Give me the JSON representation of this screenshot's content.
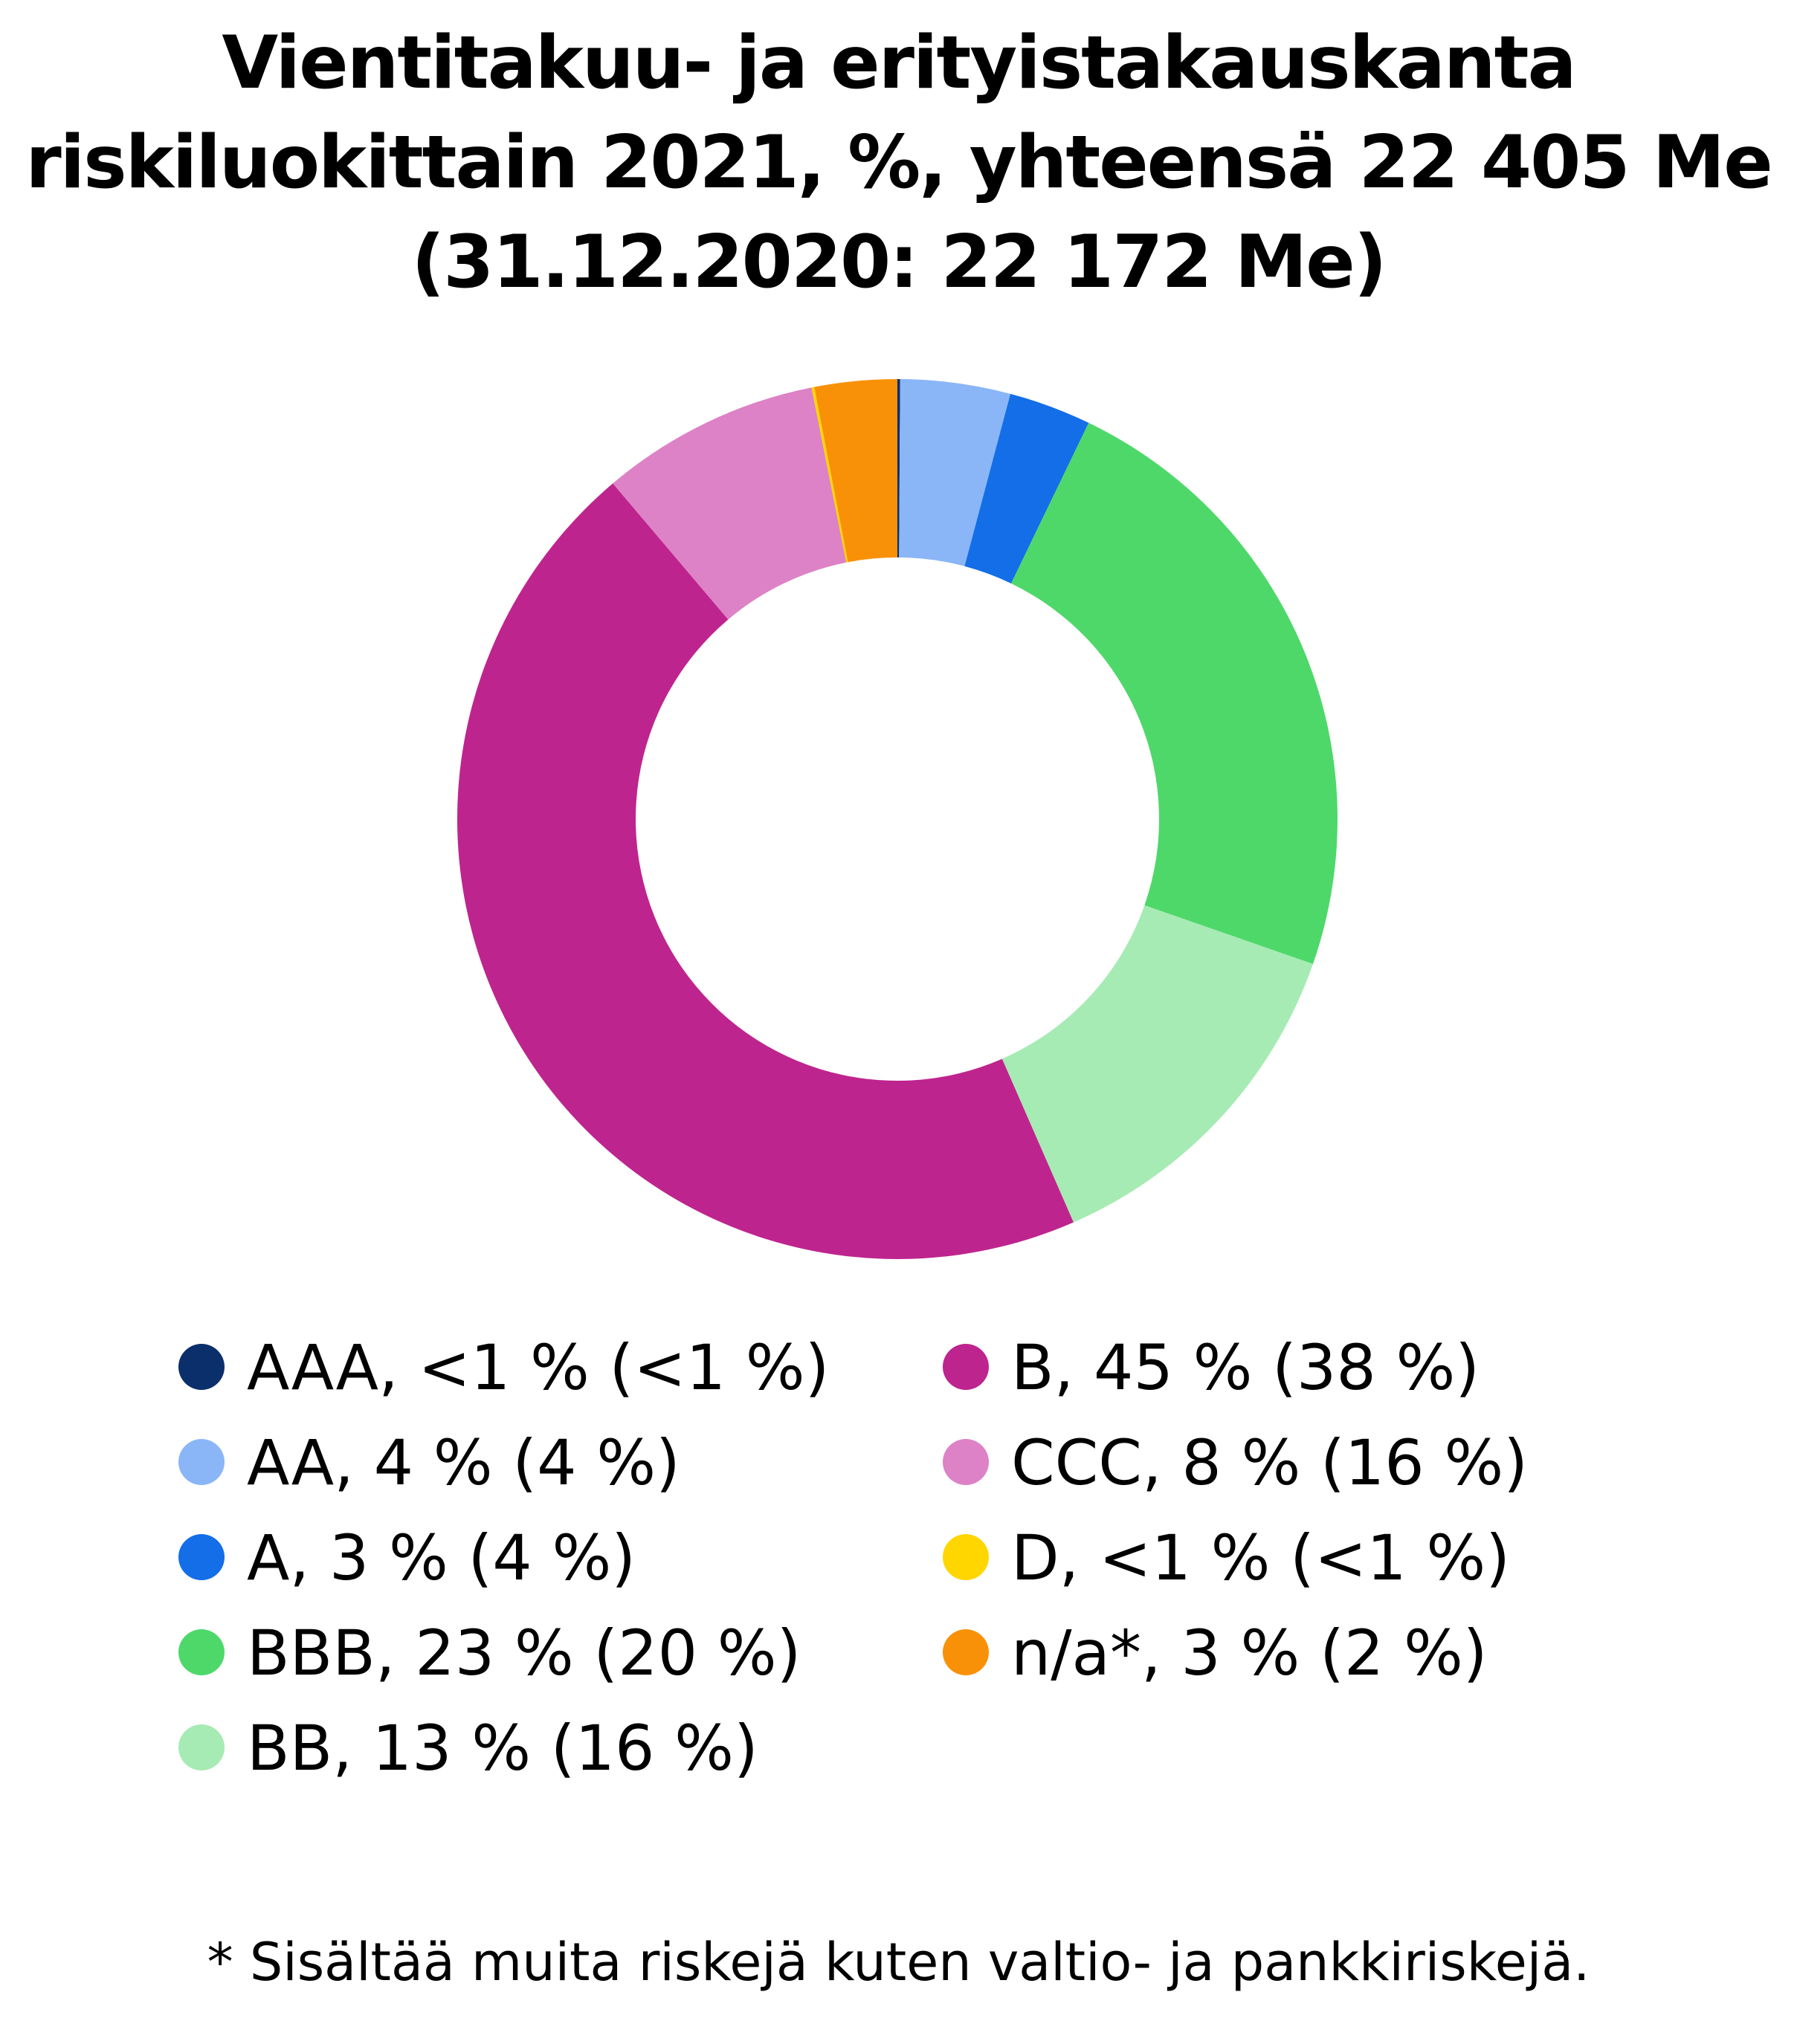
{
  "chart_data": {
    "type": "pie",
    "donut": true,
    "title_lines": [
      "Vientitakuu- ja erityistakauskanta",
      "riskiluokittain 2021, %, yhteensä 22 405 Me",
      "(31.12.2020: 22 172 Me)"
    ],
    "series": [
      {
        "name": "AAA",
        "value": 0.1,
        "color": "#0b2f6b",
        "legend": "AAA, <1 % (<1 %)"
      },
      {
        "name": "AA",
        "value": 4,
        "color": "#8ab6f8",
        "legend": "AA, 4 % (4 %)"
      },
      {
        "name": "A",
        "value": 3,
        "color": "#136ee8",
        "legend": "A, 3 % (4 %)"
      },
      {
        "name": "BBB",
        "value": 23,
        "color": "#4ed86a",
        "legend": "BBB, 23 % (20 %)"
      },
      {
        "name": "BB",
        "value": 13,
        "color": "#a6ebb4",
        "legend": "BB, 13 % (16 %)"
      },
      {
        "name": "B",
        "value": 45,
        "color": "#be248e",
        "legend": "B, 45 % (38 %)"
      },
      {
        "name": "CCC",
        "value": 8,
        "color": "#dd82c6",
        "legend": "CCC, 8 % (16 %)"
      },
      {
        "name": "D",
        "value": 0.1,
        "color": "#ffd600",
        "legend": "D, <1 % (<1 %)"
      },
      {
        "name": "n/a*",
        "value": 3,
        "color": "#f99108",
        "legend": "n/a*, 3 % (2 %)"
      }
    ],
    "legend_columns": [
      [
        "AAA",
        "AA",
        "A",
        "BBB",
        "BB"
      ],
      [
        "B",
        "CCC",
        "D",
        "n/a*"
      ]
    ],
    "footnote": "* Sisältää muita riskejä kuten valtio- ja pankkiriskejä."
  }
}
